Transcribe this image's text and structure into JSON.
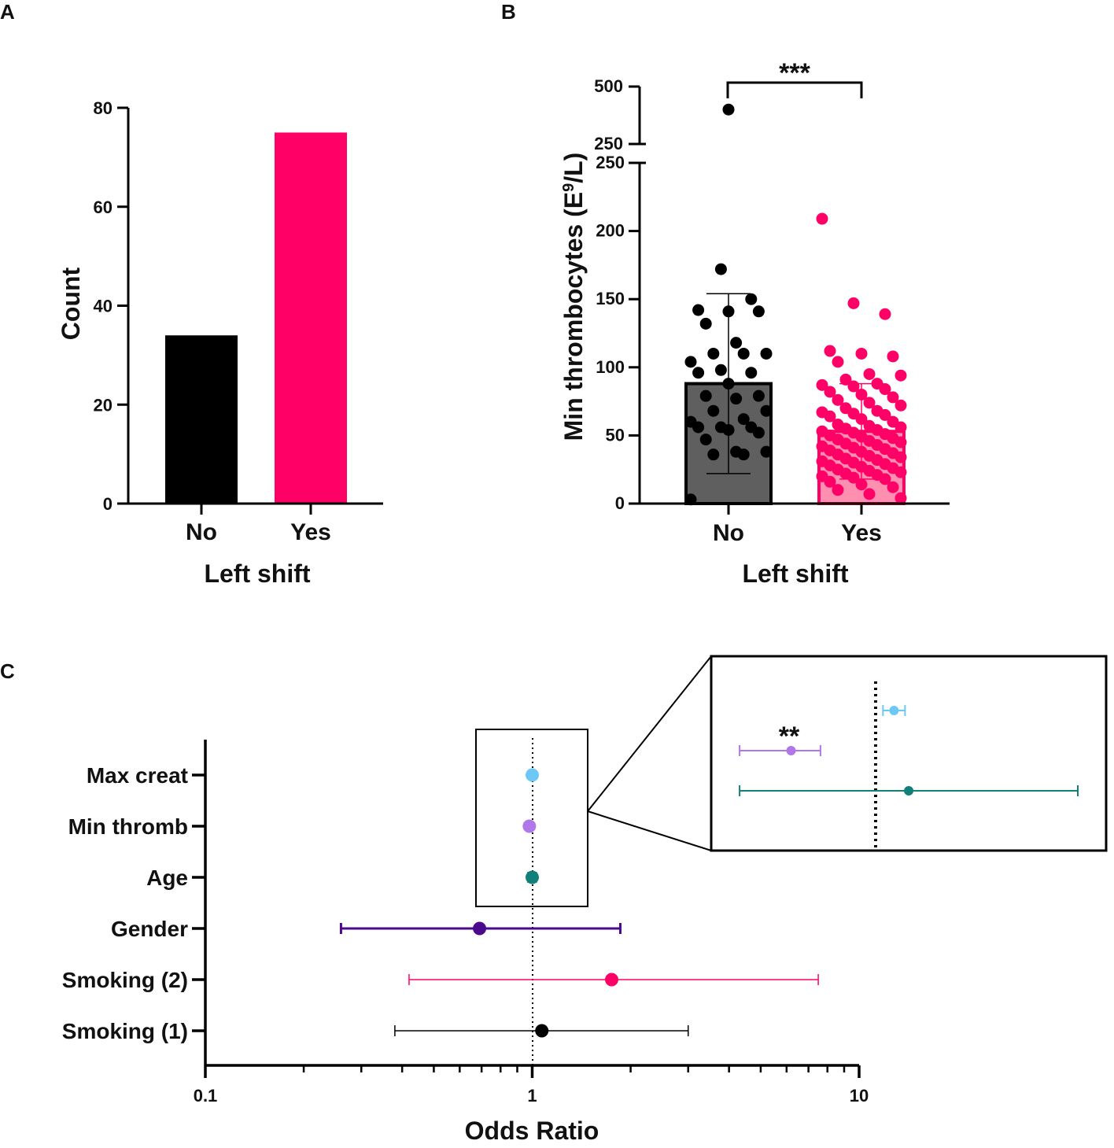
{
  "panel_labels": {
    "a": "A",
    "b": "B",
    "c": "C"
  },
  "colors": {
    "black": "#000000",
    "pink": "#ff0066",
    "grey_bar": "#5f5f5f",
    "light_pink_bar": "#ff8fb1",
    "light_blue": "#6cc8f5",
    "lavender": "#b077ea",
    "teal": "#12807a",
    "purple": "#4b0a8c"
  },
  "chart_data": [
    {
      "id": "A",
      "type": "bar",
      "categories": [
        "No",
        "Yes"
      ],
      "values": [
        34,
        75
      ],
      "xlabel": "Left shift",
      "ylabel": "Count",
      "ylim": [
        0,
        80
      ],
      "yticks": [
        "0",
        "20",
        "40",
        "60",
        "80"
      ],
      "title": ""
    },
    {
      "id": "B",
      "type": "bar",
      "categories": [
        "No",
        "Yes"
      ],
      "means": [
        88,
        53
      ],
      "sd_upper": [
        154,
        88
      ],
      "sd_lower": [
        22,
        18
      ],
      "xlabel": "Left shift",
      "ylabel": "Min thrombocytes (E9/L)",
      "ylabel_parts": {
        "main": "Min thrombocytes (E",
        "sup": "9",
        "end": "/L)"
      },
      "ylim_lower": [
        0,
        250
      ],
      "ylim_upper": [
        250,
        500
      ],
      "yticks_lower": [
        "0",
        "50",
        "100",
        "150",
        "200",
        "250"
      ],
      "yticks_upper": [
        "250",
        "500"
      ],
      "significance": "***",
      "points": {
        "No": [
          400,
          172,
          150,
          142,
          141,
          141,
          132,
          118,
          110,
          110,
          110,
          104,
          98,
          96,
          96,
          88,
          79,
          79,
          77,
          68,
          68,
          62,
          60,
          56,
          56,
          56,
          54,
          52,
          47,
          38,
          38,
          36,
          36,
          3
        ],
        "Yes": [
          209,
          147,
          139,
          112,
          110,
          108,
          104,
          95,
          94,
          91,
          88,
          87,
          86,
          84,
          82,
          80,
          78,
          76,
          74,
          72,
          70,
          68,
          67,
          66,
          65,
          64,
          62,
          60,
          58,
          57,
          56,
          55,
          54,
          53,
          52,
          51,
          50,
          49,
          48,
          47,
          46,
          45,
          44,
          43,
          42,
          41,
          40,
          39,
          38,
          37,
          36,
          35,
          34,
          33,
          32,
          31,
          30,
          29,
          28,
          27,
          26,
          25,
          24,
          23,
          22,
          21,
          20,
          19,
          18,
          16,
          14,
          12,
          10,
          7,
          4
        ]
      }
    },
    {
      "id": "C",
      "type": "forest",
      "xscale": "log",
      "xlim": [
        0.1,
        10
      ],
      "xticks": [
        "0.1",
        "1",
        "10"
      ],
      "xlabel": "Odds Ratio",
      "reference": 1,
      "rows": [
        {
          "label": "Max creat",
          "or": 1.0,
          "low": 0.99,
          "high": 1.01,
          "color": "#6cc8f5"
        },
        {
          "label": "Min thromb",
          "or": 0.98,
          "low": 0.97,
          "high": 0.99,
          "color": "#b077ea"
        },
        {
          "label": "Age",
          "or": 1.0,
          "low": 0.97,
          "high": 1.03,
          "color": "#12807a"
        },
        {
          "label": "Gender",
          "or": 0.69,
          "low": 0.26,
          "high": 1.86,
          "color": "#4b0a8c"
        },
        {
          "label": "Smoking (2)",
          "or": 1.75,
          "low": 0.42,
          "high": 7.5,
          "color": "#ff0066"
        },
        {
          "label": "Smoking (1)",
          "or": 1.07,
          "low": 0.38,
          "high": 3.0,
          "color": "#000000"
        }
      ],
      "inset": {
        "significance": "**",
        "rows": [
          {
            "label": "Max creat",
            "or": 1.0025,
            "low": 1.001,
            "high": 1.004,
            "color": "#6cc8f5"
          },
          {
            "label": "Min thromb",
            "or": 0.9885,
            "low": 0.9815,
            "high": 0.9925,
            "color": "#b077ea"
          },
          {
            "label": "Age",
            "or": 1.0045,
            "low": 0.9815,
            "high": 1.0275,
            "color": "#12807a"
          }
        ]
      }
    }
  ]
}
